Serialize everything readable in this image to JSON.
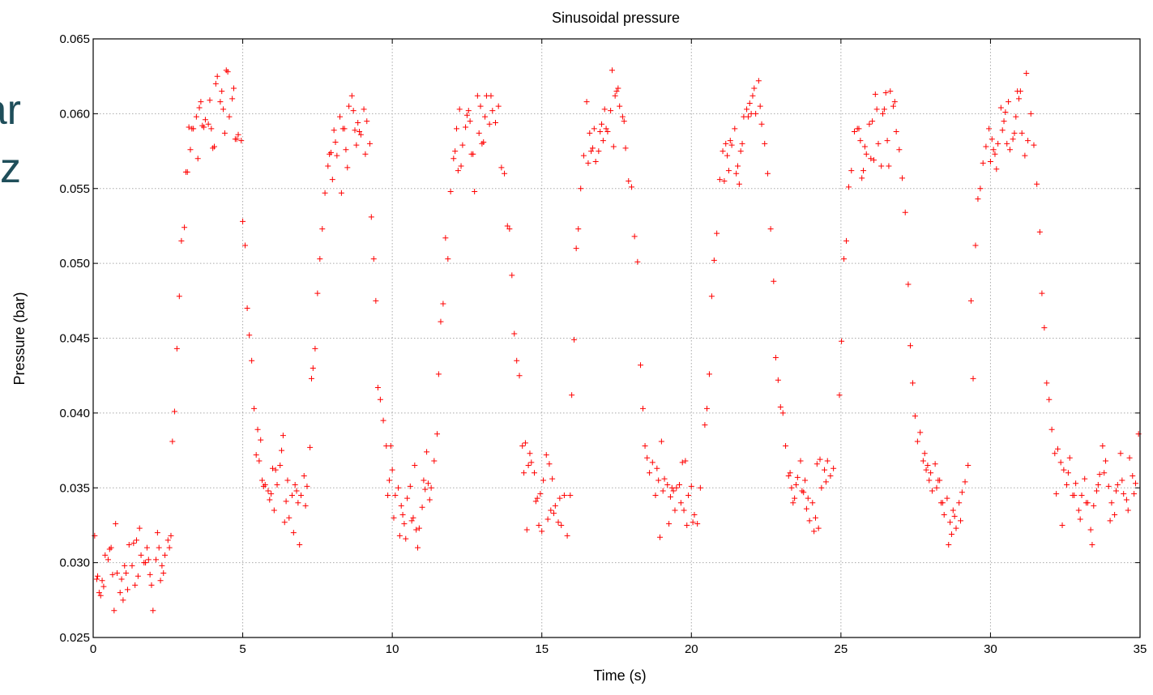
{
  "slide_fragment": {
    "line1": "ar",
    "line2": "z"
  },
  "chart_data": {
    "type": "scatter",
    "title": "Sinusoidal pressure",
    "xlabel": "Time (s)",
    "ylabel": "Pressure (bar)",
    "xlim": [
      0,
      35
    ],
    "ylim": [
      0.025,
      0.065
    ],
    "x_ticks": [
      0,
      5,
      10,
      15,
      20,
      25,
      30,
      35
    ],
    "x_tick_labels": [
      "0",
      "5",
      "10",
      "15",
      "20",
      "25",
      "30",
      "35"
    ],
    "y_ticks": [
      0.025,
      0.03,
      0.035,
      0.04,
      0.045,
      0.05,
      0.055,
      0.06,
      0.065
    ],
    "y_tick_labels": [
      "0.025",
      "0.030",
      "0.035",
      "0.040",
      "0.045",
      "0.050",
      "0.055",
      "0.060",
      "0.065"
    ],
    "grid": true,
    "marker": "+",
    "color": "#ff0000",
    "series": [
      {
        "x": [
          0.05,
          0.12,
          0.2,
          0.3,
          0.4,
          0.5,
          0.6,
          0.7,
          0.8,
          0.9,
          1.0,
          1.1,
          1.2,
          1.3,
          1.4,
          1.5,
          1.6,
          1.7,
          1.8,
          1.9,
          2.0,
          2.1,
          2.2,
          2.3,
          2.4,
          2.5,
          2.6,
          0.15,
          0.35,
          0.55,
          0.75,
          0.95,
          1.15,
          1.35,
          1.55,
          1.75,
          1.95,
          2.15,
          2.35,
          2.55,
          0.25,
          0.65,
          1.05,
          1.45,
          1.85,
          2.25,
          2.65,
          2.72,
          2.8,
          2.88,
          2.95,
          3.05,
          3.15,
          3.25,
          3.35,
          3.45,
          3.55,
          3.65,
          3.75,
          3.85,
          3.95,
          4.05,
          4.15,
          4.25,
          4.35,
          4.45,
          4.55,
          4.65,
          4.75,
          4.85,
          4.95,
          3.1,
          3.3,
          3.5,
          3.7,
          3.9,
          4.1,
          4.3,
          4.5,
          4.7,
          3.2,
          3.6,
          4.0,
          4.4,
          4.8,
          5.0,
          5.08,
          5.15,
          5.22,
          5.3,
          5.38,
          5.45,
          5.55,
          5.65,
          5.75,
          5.85,
          5.95,
          6.05,
          6.15,
          6.25,
          6.35,
          6.45,
          6.55,
          6.65,
          6.75,
          6.85,
          6.95,
          7.05,
          7.15,
          7.25,
          5.5,
          5.7,
          5.9,
          6.1,
          6.3,
          6.5,
          6.7,
          6.9,
          7.1,
          5.6,
          6.0,
          6.4,
          6.8,
          7.3,
          7.35,
          7.42,
          7.5,
          7.58,
          7.66,
          7.75,
          7.85,
          7.95,
          8.05,
          8.15,
          8.25,
          8.35,
          8.45,
          8.55,
          8.65,
          8.75,
          8.85,
          8.95,
          9.05,
          9.15,
          9.25,
          7.9,
          8.1,
          8.3,
          8.5,
          8.7,
          8.9,
          9.1,
          8.0,
          8.4,
          8.8,
          9.3,
          9.38,
          9.45,
          9.52,
          9.6,
          9.7,
          9.8,
          9.9,
          10.0,
          10.1,
          10.2,
          10.3,
          10.4,
          10.5,
          10.6,
          10.7,
          10.8,
          10.9,
          11.0,
          11.1,
          11.2,
          11.3,
          11.4,
          11.5,
          9.85,
          10.05,
          10.25,
          10.45,
          10.65,
          10.85,
          11.05,
          11.25,
          9.95,
          10.35,
          10.75,
          11.15,
          11.55,
          11.62,
          11.7,
          11.78,
          11.86,
          11.95,
          12.05,
          12.15,
          12.25,
          12.35,
          12.45,
          12.55,
          12.65,
          12.75,
          12.85,
          12.95,
          13.05,
          13.15,
          13.25,
          13.35,
          13.45,
          13.55,
          13.65,
          13.75,
          12.1,
          12.3,
          12.5,
          12.7,
          12.9,
          13.1,
          13.3,
          12.2,
          12.6,
          13.0,
          13.85,
          13.92,
          14.0,
          14.08,
          14.16,
          14.25,
          14.35,
          14.45,
          14.55,
          14.65,
          14.75,
          14.85,
          14.95,
          15.05,
          15.15,
          15.25,
          15.35,
          15.45,
          15.55,
          15.65,
          15.75,
          15.85,
          15.95,
          14.4,
          14.6,
          14.8,
          15.0,
          15.2,
          15.4,
          15.6,
          14.5,
          14.9,
          15.3,
          16.0,
          16.08,
          16.15,
          16.22,
          16.3,
          16.4,
          16.5,
          16.6,
          16.7,
          16.8,
          16.9,
          17.0,
          17.1,
          17.2,
          17.3,
          17.4,
          17.5,
          17.6,
          17.7,
          17.8,
          17.9,
          18.0,
          18.1,
          18.2,
          16.55,
          16.75,
          16.95,
          17.15,
          17.35,
          17.55,
          17.75,
          16.65,
          17.05,
          17.45,
          18.3,
          18.38,
          18.45,
          18.52,
          18.6,
          18.7,
          18.8,
          18.9,
          19.0,
          19.1,
          19.2,
          19.3,
          19.4,
          19.5,
          19.6,
          19.7,
          19.8,
          19.9,
          20.0,
          20.1,
          20.2,
          20.3,
          18.85,
          19.05,
          19.25,
          19.45,
          19.65,
          19.85,
          20.05,
          18.95,
          19.35,
          19.75,
          20.45,
          20.52,
          20.6,
          20.68,
          20.76,
          20.85,
          20.95,
          21.05,
          21.15,
          21.25,
          21.35,
          21.45,
          21.55,
          21.65,
          21.75,
          21.85,
          21.95,
          22.05,
          22.15,
          22.25,
          22.35,
          22.45,
          22.55,
          22.65,
          21.1,
          21.3,
          21.5,
          21.7,
          21.9,
          22.1,
          22.3,
          21.2,
          21.6,
          22.0,
          22.75,
          22.82,
          22.9,
          22.98,
          23.06,
          23.15,
          23.25,
          23.35,
          23.45,
          23.55,
          23.65,
          23.75,
          23.85,
          23.95,
          24.05,
          24.15,
          24.25,
          24.35,
          24.45,
          24.55,
          24.65,
          24.75,
          23.3,
          23.5,
          23.7,
          23.9,
          24.1,
          24.3,
          24.5,
          23.4,
          23.8,
          24.2,
          24.95,
          25.02,
          25.1,
          25.18,
          25.26,
          25.35,
          25.45,
          25.55,
          25.65,
          25.75,
          25.85,
          25.95,
          26.05,
          26.15,
          26.25,
          26.35,
          26.45,
          26.55,
          26.65,
          26.75,
          26.85,
          26.95,
          27.05,
          27.15,
          25.6,
          25.8,
          26.0,
          26.2,
          26.4,
          26.6,
          26.8,
          25.7,
          26.1,
          26.5,
          27.25,
          27.32,
          27.4,
          27.48,
          27.56,
          27.65,
          27.75,
          27.85,
          27.95,
          28.05,
          28.15,
          28.25,
          28.35,
          28.45,
          28.55,
          28.65,
          28.75,
          28.85,
          28.95,
          29.05,
          29.15,
          29.25,
          27.8,
          28.0,
          28.2,
          28.4,
          28.6,
          28.8,
          29.0,
          27.9,
          28.3,
          28.7,
          29.35,
          29.42,
          29.5,
          29.58,
          29.66,
          29.75,
          29.85,
          29.95,
          30.05,
          30.15,
          30.25,
          30.35,
          30.45,
          30.55,
          30.65,
          30.75,
          30.85,
          30.95,
          31.05,
          31.15,
          31.25,
          31.35,
          31.45,
          31.55,
          30.0,
          30.2,
          30.4,
          30.6,
          30.8,
          31.0,
          31.2,
          30.1,
          30.5,
          30.9,
          31.65,
          31.72,
          31.8,
          31.88,
          31.96,
          32.05,
          32.15,
          32.25,
          32.35,
          32.45,
          32.55,
          32.65,
          32.75,
          32.85,
          32.95,
          33.05,
          33.15,
          33.25,
          33.35,
          33.45,
          33.55,
          33.65,
          33.75,
          33.85,
          33.95,
          34.05,
          34.15,
          34.25,
          34.35,
          34.45,
          34.55,
          34.65,
          34.75,
          34.85,
          34.95,
          32.2,
          32.4,
          32.6,
          32.8,
          33.0,
          33.2,
          33.4,
          33.6,
          33.8,
          34.0,
          34.2,
          34.4,
          34.6,
          34.8
        ],
        "y": [
          0.0318,
          0.0289,
          0.028,
          0.0288,
          0.0305,
          0.0302,
          0.031,
          0.0268,
          0.0293,
          0.028,
          0.0275,
          0.0293,
          0.0312,
          0.0298,
          0.0285,
          0.0291,
          0.0305,
          0.03,
          0.031,
          0.0292,
          0.0268,
          0.0302,
          0.031,
          0.0298,
          0.0305,
          0.0315,
          0.0318,
          0.0291,
          0.0284,
          0.0309,
          0.0326,
          0.0289,
          0.0282,
          0.0313,
          0.0323,
          0.03,
          0.0285,
          0.032,
          0.0293,
          0.031,
          0.0278,
          0.0292,
          0.0298,
          0.0315,
          0.0302,
          0.0288,
          0.0381,
          0.0401,
          0.0443,
          0.0478,
          0.0515,
          0.0524,
          0.0561,
          0.0576,
          0.059,
          0.0598,
          0.0604,
          0.0592,
          0.0596,
          0.0593,
          0.059,
          0.0578,
          0.0625,
          0.0608,
          0.0603,
          0.0629,
          0.0598,
          0.061,
          0.0583,
          0.0586,
          0.0582,
          0.0561,
          0.059,
          0.057,
          0.0591,
          0.0609,
          0.062,
          0.0615,
          0.0628,
          0.0617,
          0.0591,
          0.0608,
          0.0577,
          0.0587,
          0.0583,
          0.0528,
          0.0512,
          0.047,
          0.0452,
          0.0435,
          0.0403,
          0.0372,
          0.0368,
          0.0355,
          0.0352,
          0.0348,
          0.0346,
          0.0335,
          0.0352,
          0.0365,
          0.0385,
          0.0341,
          0.033,
          0.0345,
          0.0352,
          0.034,
          0.0345,
          0.0358,
          0.0351,
          0.0377,
          0.0389,
          0.0351,
          0.0342,
          0.0362,
          0.0375,
          0.0355,
          0.032,
          0.0312,
          0.0338,
          0.0382,
          0.0363,
          0.0327,
          0.0348,
          0.0423,
          0.043,
          0.0443,
          0.048,
          0.0503,
          0.0523,
          0.0547,
          0.0565,
          0.0574,
          0.0589,
          0.0572,
          0.0598,
          0.059,
          0.0576,
          0.0605,
          0.0612,
          0.0589,
          0.0594,
          0.0586,
          0.0603,
          0.0595,
          0.058,
          0.0573,
          0.0581,
          0.0547,
          0.0564,
          0.0602,
          0.0588,
          0.0573,
          0.0556,
          0.059,
          0.0579,
          0.0531,
          0.0503,
          0.0475,
          0.0417,
          0.0409,
          0.0395,
          0.0378,
          0.0355,
          0.0362,
          0.0345,
          0.035,
          0.0338,
          0.0326,
          0.0343,
          0.0351,
          0.033,
          0.0322,
          0.0323,
          0.0337,
          0.0349,
          0.0353,
          0.035,
          0.0368,
          0.0386,
          0.0345,
          0.033,
          0.0318,
          0.0316,
          0.0328,
          0.031,
          0.0355,
          0.0342,
          0.0378,
          0.0332,
          0.0365,
          0.0374,
          0.0426,
          0.0461,
          0.0473,
          0.0517,
          0.0503,
          0.0548,
          0.057,
          0.059,
          0.0603,
          0.0579,
          0.0591,
          0.0602,
          0.0573,
          0.0548,
          0.0612,
          0.0605,
          0.0581,
          0.0612,
          0.0593,
          0.0602,
          0.0594,
          0.0605,
          0.0564,
          0.056,
          0.0575,
          0.0565,
          0.0599,
          0.0573,
          0.0587,
          0.0598,
          0.0612,
          0.0562,
          0.0595,
          0.058,
          0.0525,
          0.0523,
          0.0492,
          0.0453,
          0.0435,
          0.0425,
          0.0378,
          0.038,
          0.0365,
          0.0367,
          0.036,
          0.0343,
          0.0346,
          0.0355,
          0.0372,
          0.0366,
          0.0356,
          0.0338,
          0.0327,
          0.0325,
          0.0345,
          0.0318,
          0.0345,
          0.036,
          0.0373,
          0.0341,
          0.0321,
          0.0329,
          0.0333,
          0.0343,
          0.0322,
          0.0325,
          0.0335,
          0.0412,
          0.0449,
          0.051,
          0.0523,
          0.055,
          0.0572,
          0.0608,
          0.0587,
          0.0577,
          0.0568,
          0.0575,
          0.0593,
          0.0603,
          0.0588,
          0.0602,
          0.0578,
          0.0615,
          0.0605,
          0.0598,
          0.0577,
          0.0555,
          0.0551,
          0.0518,
          0.0501,
          0.0567,
          0.059,
          0.0588,
          0.059,
          0.0629,
          0.0617,
          0.0595,
          0.0575,
          0.0582,
          0.0612,
          0.0432,
          0.0403,
          0.0378,
          0.037,
          0.036,
          0.0367,
          0.0345,
          0.0355,
          0.0381,
          0.0356,
          0.0352,
          0.0344,
          0.0348,
          0.035,
          0.0352,
          0.0367,
          0.0368,
          0.0345,
          0.0351,
          0.0332,
          0.0326,
          0.035,
          0.0363,
          0.0348,
          0.0326,
          0.0335,
          0.034,
          0.0325,
          0.0327,
          0.0317,
          0.035,
          0.0335,
          0.0392,
          0.0403,
          0.0426,
          0.0478,
          0.0502,
          0.052,
          0.0556,
          0.0575,
          0.058,
          0.0562,
          0.0579,
          0.059,
          0.0565,
          0.0575,
          0.0598,
          0.0603,
          0.0607,
          0.0612,
          0.06,
          0.0622,
          0.0593,
          0.058,
          0.056,
          0.0523,
          0.0555,
          0.0582,
          0.056,
          0.058,
          0.0598,
          0.0617,
          0.0605,
          0.0572,
          0.0553,
          0.06,
          0.0488,
          0.0437,
          0.0422,
          0.0404,
          0.04,
          0.0378,
          0.0358,
          0.035,
          0.0343,
          0.0357,
          0.0368,
          0.0347,
          0.0336,
          0.0328,
          0.034,
          0.033,
          0.0323,
          0.035,
          0.0362,
          0.0368,
          0.0358,
          0.0363,
          0.036,
          0.0352,
          0.0348,
          0.0343,
          0.0321,
          0.0369,
          0.0354,
          0.034,
          0.0355,
          0.0366,
          0.0412,
          0.0448,
          0.0503,
          0.0515,
          0.0551,
          0.0562,
          0.0588,
          0.059,
          0.0582,
          0.0562,
          0.0573,
          0.0593,
          0.0595,
          0.0613,
          0.058,
          0.0565,
          0.0603,
          0.0582,
          0.0615,
          0.0605,
          0.0588,
          0.0576,
          0.0557,
          0.0534,
          0.059,
          0.0578,
          0.057,
          0.0603,
          0.06,
          0.0565,
          0.0608,
          0.0557,
          0.0569,
          0.0614,
          0.0486,
          0.0445,
          0.042,
          0.0398,
          0.0381,
          0.0387,
          0.0368,
          0.0362,
          0.0355,
          0.0348,
          0.0366,
          0.0355,
          0.034,
          0.0332,
          0.0343,
          0.0327,
          0.0335,
          0.0323,
          0.034,
          0.0347,
          0.0354,
          0.0365,
          0.0373,
          0.036,
          0.035,
          0.034,
          0.0312,
          0.0331,
          0.0328,
          0.0365,
          0.0355,
          0.0319,
          0.0475,
          0.0423,
          0.0512,
          0.0543,
          0.055,
          0.0567,
          0.0578,
          0.059,
          0.0583,
          0.0573,
          0.058,
          0.0604,
          0.0595,
          0.058,
          0.0576,
          0.0583,
          0.0598,
          0.061,
          0.0587,
          0.0572,
          0.0582,
          0.06,
          0.0579,
          0.0553,
          0.0568,
          0.0563,
          0.0589,
          0.0608,
          0.0587,
          0.0615,
          0.0627,
          0.0576,
          0.0601,
          0.0615,
          0.0521,
          0.048,
          0.0457,
          0.042,
          0.0409,
          0.0389,
          0.0373,
          0.0376,
          0.0367,
          0.0362,
          0.0352,
          0.037,
          0.0345,
          0.0353,
          0.0335,
          0.0345,
          0.0356,
          0.034,
          0.0322,
          0.0338,
          0.0348,
          0.0359,
          0.0378,
          0.0368,
          0.0351,
          0.034,
          0.0332,
          0.0352,
          0.0373,
          0.0346,
          0.0342,
          0.037,
          0.0358,
          0.0353,
          0.0386,
          0.0346,
          0.0325,
          0.036,
          0.0345,
          0.0329,
          0.034,
          0.0312,
          0.0352,
          0.036,
          0.0328,
          0.0348,
          0.0355,
          0.0335,
          0.0346
        ]
      }
    ]
  }
}
